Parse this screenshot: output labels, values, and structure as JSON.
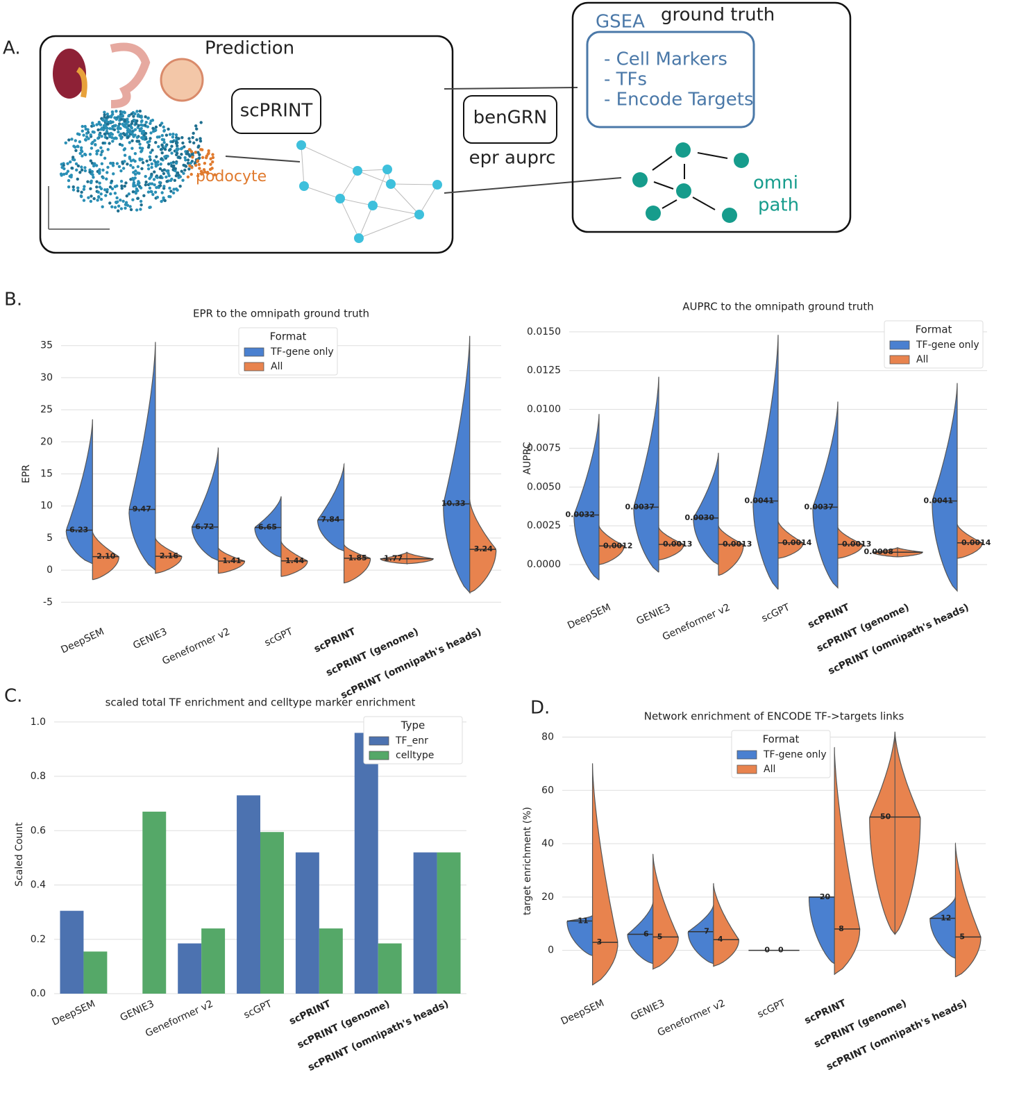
{
  "panel_labels": [
    "B.",
    "C.",
    "D."
  ],
  "diagram": {
    "panel": "A.",
    "prediction": {
      "title": "Prediction",
      "model": "scPRINT",
      "cell_type": "podocyte"
    },
    "benchmark": {
      "name": "benGRN",
      "metrics": "epr auprc"
    },
    "ground_truth": {
      "title": "ground truth",
      "gsea": "GSEA",
      "items": [
        "- Cell Markers",
        "- TFs",
        "- Encode Targets"
      ],
      "omnipath": [
        "omni",
        "path"
      ]
    }
  },
  "chart_data": [
    {
      "type": "violin",
      "title": "EPR to the omnipath ground truth",
      "ylabel": "EPR",
      "categories": [
        "DeepSEM",
        "GENIE3",
        "Geneformer v2",
        "scGPT",
        "scPRINT",
        "scPRINT (genome)",
        "scPRINT (omnipath's heads)"
      ],
      "legend_title": "Format",
      "legend": "upper center",
      "grid": true,
      "ylim": [
        -8,
        38
      ],
      "yticks": [
        -5,
        0,
        5,
        10,
        15,
        20,
        25,
        30,
        35
      ],
      "series": [
        {
          "name": "TF-gene only",
          "color": "#4a80d0",
          "values": [
            6.23,
            9.47,
            6.72,
            6.65,
            7.84,
            null,
            10.33
          ],
          "value_labels": [
            "6.23",
            "9.47",
            "6.72",
            "6.65",
            "7.84",
            null,
            "10.33"
          ],
          "min": [
            1,
            0,
            1.5,
            2,
            3,
            null,
            -3.5
          ],
          "max": [
            23.5,
            35.5,
            19,
            11.5,
            16.5,
            null,
            36.5
          ]
        },
        {
          "name": "All",
          "color": "#e8834e",
          "values": [
            2.1,
            2.16,
            1.41,
            1.44,
            1.85,
            1.77,
            3.24
          ],
          "value_labels": [
            "2.10",
            "2.16",
            "1.41",
            "1.44",
            "1.85",
            "1.77",
            "3.24"
          ],
          "min": [
            -1.5,
            -0.5,
            -0.5,
            -1,
            -2,
            1,
            -3.5
          ],
          "max": [
            6,
            5,
            3.5,
            4.5,
            4,
            2.8,
            11
          ]
        }
      ]
    },
    {
      "type": "violin",
      "title": "AUPRC to the omnipath ground truth",
      "ylabel": "AUPRC",
      "categories": [
        "DeepSEM",
        "GENIE3",
        "Geneformer v2",
        "scGPT",
        "scPRINT",
        "scPRINT (genome)",
        "scPRINT (omnipath's heads)"
      ],
      "legend_title": "Format",
      "legend": "upper right",
      "grid": true,
      "ylim": [
        -0.0021,
        0.0158
      ],
      "yticks": [
        {
          "value": 0,
          "label": "0.0000"
        },
        {
          "value": 0.0025,
          "label": "0.0025"
        },
        {
          "value": 0.005,
          "label": "0.0050"
        },
        {
          "value": 0.0075,
          "label": "0.0075"
        },
        {
          "value": 0.01,
          "label": "0.0100"
        },
        {
          "value": 0.0125,
          "label": "0.0125"
        },
        {
          "value": 0.015,
          "label": "0.0150"
        }
      ],
      "series": [
        {
          "name": "TF-gene only",
          "color": "#4a80d0",
          "values": [
            0.0032,
            0.0037,
            0.003,
            0.0041,
            0.0037,
            null,
            0.0041
          ],
          "value_labels": [
            "0.0032",
            "0.0037",
            "0.0030",
            "0.0041",
            "0.0037",
            null,
            "0.0041"
          ],
          "min": [
            -0.001,
            -0.0005,
            0,
            -0.0016,
            -0.0015,
            null,
            -0.0017
          ],
          "max": [
            0.0097,
            0.0121,
            0.0072,
            0.0148,
            0.0105,
            null,
            0.0117
          ]
        },
        {
          "name": "All",
          "color": "#e8834e",
          "values": [
            0.0012,
            0.0013,
            0.0013,
            0.0014,
            0.0013,
            0.0008,
            0.0014
          ],
          "value_labels": [
            "0.0012",
            "0.0013",
            "0.0013",
            "0.0014",
            "0.0013",
            "0.0008",
            "0.0014"
          ],
          "min": [
            0,
            0.0003,
            -0.0007,
            0.0004,
            0.0004,
            0.0005,
            0.0004
          ],
          "max": [
            0.0025,
            0.0024,
            0.0025,
            0.0028,
            0.0024,
            0.0011,
            0.0026
          ]
        }
      ]
    },
    {
      "type": "bar",
      "title": "scaled total TF enrichment and celltype marker enrichment",
      "ylabel": "Scaled Count",
      "categories": [
        "DeepSEM",
        "GENIE3",
        "Geneformer v2",
        "scGPT",
        "scPRINT",
        "scPRINT (genome)",
        "scPRINT (omnipath's heads)"
      ],
      "legend_title": "Type",
      "legend": "upper right",
      "grid": true,
      "ylim": [
        0,
        1.025
      ],
      "yticks": [
        {
          "value": 0,
          "label": "0.0"
        },
        {
          "value": 0.2,
          "label": "0.2"
        },
        {
          "value": 0.4,
          "label": "0.4"
        },
        {
          "value": 0.6,
          "label": "0.6"
        },
        {
          "value": 0.8,
          "label": "0.8"
        },
        {
          "value": 1,
          "label": "1.0"
        }
      ],
      "series": [
        {
          "name": "TF_enr",
          "color": "#4c72b0",
          "values": [
            0.305,
            0,
            0.185,
            0.73,
            0.52,
            0.96,
            0.52
          ]
        },
        {
          "name": "celltype",
          "color": "#55a868",
          "values": [
            0.155,
            0.67,
            0.24,
            0.595,
            0.24,
            0.185,
            0.52
          ]
        }
      ]
    },
    {
      "type": "violin",
      "title": "Network enrichment of ENCODE TF->targets links",
      "ylabel": "target enrichment (%)",
      "categories": [
        "DeepSEM",
        "GENIE3",
        "Geneformer v2",
        "scGPT",
        "scPRINT",
        "scPRINT (genome)",
        "scPRINT (omnipath's heads)"
      ],
      "legend_title": "Format",
      "legend": "upper center",
      "grid": true,
      "ylim": [
        -16,
        83
      ],
      "yticks": [
        0,
        20,
        40,
        60,
        80
      ],
      "series": [
        {
          "name": "TF-gene only",
          "color": "#4a80d0",
          "values": [
            11,
            6,
            7,
            0,
            20,
            null,
            12
          ],
          "min": [
            -2,
            -5,
            -5,
            0,
            -5,
            null,
            -3
          ],
          "max": [
            13,
            18,
            17,
            0,
            20,
            null,
            20
          ]
        },
        {
          "name": "All",
          "color": "#e8834e",
          "values": [
            3,
            5,
            4,
            0,
            8,
            50,
            5
          ],
          "min": [
            -13,
            -7,
            -6,
            0,
            -9,
            6,
            -10
          ],
          "max": [
            70,
            36,
            25,
            0,
            76,
            82,
            40
          ]
        }
      ]
    }
  ]
}
